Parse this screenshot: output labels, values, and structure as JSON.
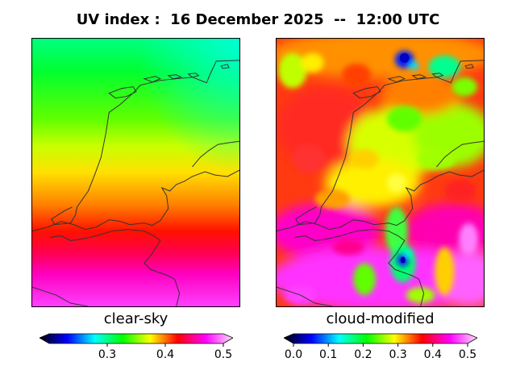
{
  "title": "UV index :  16 December 2025  --  12:00 UTC",
  "panels": [
    {
      "label": "clear-sky",
      "colorbar": {
        "range": [
          0.2,
          0.5
        ],
        "ticks": [
          "0.3",
          "0.4",
          "0.5"
        ],
        "tick_values": [
          0.3,
          0.4,
          0.5
        ]
      }
    },
    {
      "label": "cloud-modified",
      "colorbar": {
        "range": [
          0.0,
          0.5
        ],
        "ticks": [
          "0.0",
          "0.1",
          "0.2",
          "0.3",
          "0.4",
          "0.5"
        ],
        "tick_values": [
          0.0,
          0.1,
          0.2,
          0.3,
          0.4,
          0.5
        ]
      }
    }
  ],
  "colors": {
    "scale": [
      "#000000",
      "#0000ff",
      "#00ffff",
      "#00ff00",
      "#ffff00",
      "#ff0000",
      "#ff00ff",
      "#ffe0ff"
    ],
    "coast": "#333333"
  }
}
